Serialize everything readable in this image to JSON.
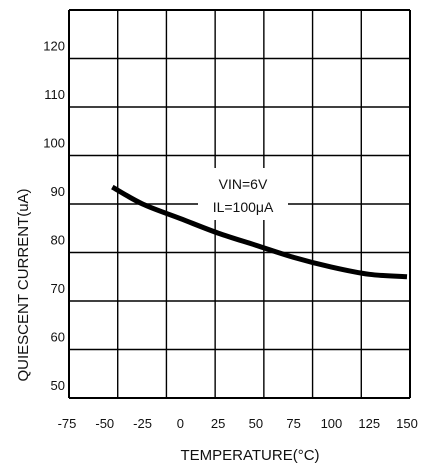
{
  "chart_data": {
    "type": "line",
    "xlabel": "TEMPERATURE(°C)",
    "ylabel": "QUIESCENT CURRENT(uA)",
    "x_ticks": [
      "-75",
      "-50",
      "-25",
      "0",
      "25",
      "50",
      "75",
      "100",
      "125",
      "150"
    ],
    "y_ticks": [
      "120",
      "110",
      "100",
      "90",
      "80",
      "70",
      "60",
      "50"
    ],
    "xlim": [
      -75,
      150
    ],
    "ylim": [
      45,
      125
    ],
    "grid": true,
    "annotation": [
      "VIN=6V",
      "IL=100μA"
    ],
    "series": [
      {
        "x": [
          -45,
          -25,
          0,
          25,
          50,
          75,
          100,
          125,
          150
        ],
        "y": [
          88.5,
          85,
          82,
          79,
          76.5,
          74,
          72,
          70.5,
          70
        ]
      }
    ]
  }
}
